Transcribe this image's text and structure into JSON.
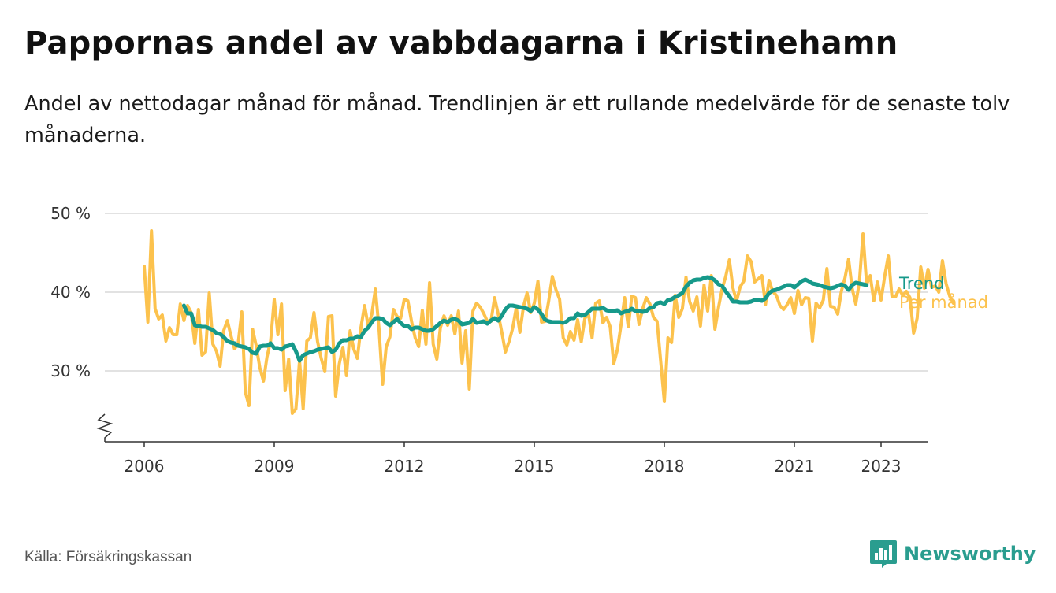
{
  "header": {
    "title": "Pappornas andel av vabbdagarna i Kristinehamn",
    "subtitle": "Andel av nettodagar månad för månad. Trendlinjen är ett rullande medelvärde för de senaste tolv månaderna."
  },
  "footer": {
    "source": "Källa: Försäkringskassan",
    "brand": "Newsworthy"
  },
  "colors": {
    "monthly": "#fcc24d",
    "trend": "#16998a",
    "grid": "#d9d9d9",
    "axis": "#333333",
    "brand": "#2a9d8f"
  },
  "chart_data": {
    "type": "line",
    "x_unit": "month",
    "ylim": [
      21,
      50
    ],
    "y_ticks": [
      30,
      40,
      50
    ],
    "y_tick_labels": [
      "30 %",
      "40 %",
      "50 %"
    ],
    "x_ticks": [
      2006,
      2009,
      2012,
      2015,
      2018,
      2021,
      2023
    ],
    "x_tick_labels": [
      "2006",
      "2009",
      "2012",
      "2015",
      "2018",
      "2021",
      "2023"
    ],
    "axis_break": true,
    "grid": true,
    "series": [
      {
        "name": "Per månad",
        "start": "2006-01",
        "values": [
          43.3,
          36.2,
          47.8,
          37.9,
          36.6,
          37.1,
          33.8,
          35.5,
          34.6,
          34.6,
          38.5,
          36.4,
          38.3,
          37.4,
          33.5,
          37.8,
          32.0,
          32.4,
          39.9,
          33.4,
          32.5,
          30.6,
          35.1,
          36.4,
          34.5,
          32.8,
          33.5,
          37.5,
          27.3,
          25.6,
          35.3,
          33.2,
          30.4,
          28.7,
          31.8,
          33.8,
          39.1,
          34.6,
          38.5,
          27.5,
          31.5,
          24.6,
          25.2,
          31.3,
          25.2,
          33.8,
          34.2,
          37.4,
          33.7,
          31.6,
          29.9,
          36.9,
          37.0,
          26.8,
          30.9,
          33.0,
          29.4,
          35.1,
          32.8,
          31.6,
          35.5,
          38.3,
          35.7,
          37.2,
          40.4,
          35.4,
          28.3,
          33.1,
          34.3,
          37.8,
          36.9,
          36.7,
          39.1,
          38.9,
          36.3,
          34.2,
          33.1,
          37.7,
          33.4,
          41.2,
          33.4,
          31.5,
          35.5,
          37.0,
          35.8,
          37.0,
          34.7,
          37.6,
          31.0,
          35.1,
          27.7,
          37.6,
          38.6,
          38.1,
          37.3,
          36.3,
          36.3,
          39.3,
          37.2,
          34.9,
          32.4,
          33.7,
          35.4,
          38.0,
          34.9,
          38.2,
          39.9,
          37.4,
          38.6,
          41.4,
          36.2,
          36.3,
          38.9,
          42.0,
          40.3,
          39.1,
          34.2,
          33.3,
          35.0,
          33.9,
          36.5,
          33.7,
          36.7,
          37.2,
          34.2,
          38.6,
          38.9,
          36.1,
          36.8,
          35.6,
          30.9,
          32.7,
          35.8,
          39.3,
          35.6,
          39.5,
          39.3,
          35.9,
          37.9,
          39.3,
          38.5,
          36.8,
          36.3,
          31.2,
          26.1,
          34.2,
          33.6,
          39.6,
          36.8,
          37.9,
          41.9,
          38.8,
          37.6,
          39.4,
          35.7,
          40.9,
          37.6,
          42.1,
          35.3,
          38.1,
          40.4,
          42.0,
          44.1,
          40.5,
          38.9,
          40.7,
          41.4,
          44.6,
          43.9,
          41.3,
          41.7,
          42.1,
          38.4,
          41.5,
          40.1,
          39.6,
          38.3,
          37.8,
          38.4,
          39.3,
          37.3,
          40.2,
          38.4,
          39.3,
          39.2,
          33.8,
          38.6,
          38.0,
          39.0,
          43.0,
          38.2,
          38.1,
          37.2,
          40.1,
          41.8,
          44.2,
          40.5,
          38.5,
          41.3,
          47.4,
          41.0,
          42.1,
          38.9,
          41.3,
          39.0,
          42.0,
          44.6,
          39.5,
          39.4,
          40.4,
          39.6,
          40.1,
          39.3,
          34.8,
          36.7,
          43.2,
          40.5,
          42.9,
          40.6,
          40.8,
          40.0,
          44.0,
          41.1,
          39.5,
          38.6
        ]
      },
      {
        "name": "Trend",
        "start": "2006-12",
        "values": [
          38.3,
          37.3,
          37.3,
          35.8,
          35.7,
          35.6,
          35.6,
          35.4,
          35.2,
          34.8,
          34.7,
          34.3,
          33.8,
          33.6,
          33.5,
          33.2,
          33.1,
          33.0,
          32.8,
          32.3,
          32.2,
          33.1,
          33.2,
          33.2,
          33.5,
          32.9,
          32.9,
          32.7,
          33.1,
          33.2,
          33.4,
          32.5,
          31.3,
          32.0,
          32.2,
          32.4,
          32.5,
          32.7,
          32.8,
          32.9,
          33.0,
          32.4,
          32.7,
          33.5,
          33.9,
          33.9,
          34.1,
          34.1,
          34.4,
          34.3,
          35.1,
          35.5,
          36.2,
          36.7,
          36.7,
          36.6,
          36.1,
          35.8,
          36.2,
          36.6,
          36.1,
          35.7,
          35.7,
          35.3,
          35.5,
          35.5,
          35.3,
          35.1,
          35.1,
          35.3,
          35.7,
          36.1,
          36.4,
          36.2,
          36.5,
          36.6,
          36.4,
          35.9,
          36.0,
          36.1,
          36.6,
          36.1,
          36.2,
          36.3,
          36.0,
          36.4,
          36.7,
          36.4,
          37.0,
          37.8,
          38.3,
          38.3,
          38.2,
          38.1,
          38.0,
          37.9,
          37.6,
          38.1,
          37.8,
          37.2,
          36.5,
          36.3,
          36.2,
          36.2,
          36.2,
          36.1,
          36.3,
          36.7,
          36.7,
          37.3,
          37.0,
          37.1,
          37.5,
          37.9,
          37.9,
          37.9,
          38.0,
          37.7,
          37.6,
          37.6,
          37.7,
          37.3,
          37.5,
          37.6,
          37.9,
          37.6,
          37.6,
          37.5,
          37.6,
          38.0,
          38.1,
          38.6,
          38.7,
          38.5,
          39.0,
          39.1,
          39.4,
          39.6,
          39.9,
          40.7,
          41.2,
          41.5,
          41.6,
          41.6,
          41.8,
          41.9,
          41.8,
          41.5,
          41.0,
          40.8,
          40.1,
          39.5,
          38.8,
          38.8,
          38.7,
          38.7,
          38.7,
          38.8,
          39.0,
          39.0,
          38.9,
          39.2,
          39.9,
          40.2,
          40.3,
          40.5,
          40.7,
          40.9,
          40.9,
          40.6,
          41.0,
          41.4,
          41.6,
          41.4,
          41.1,
          41.0,
          40.9,
          40.7,
          40.6,
          40.5,
          40.6,
          40.8,
          41.0,
          40.8,
          40.3,
          40.9,
          41.2,
          41.1,
          41.0,
          40.9
        ]
      }
    ]
  }
}
